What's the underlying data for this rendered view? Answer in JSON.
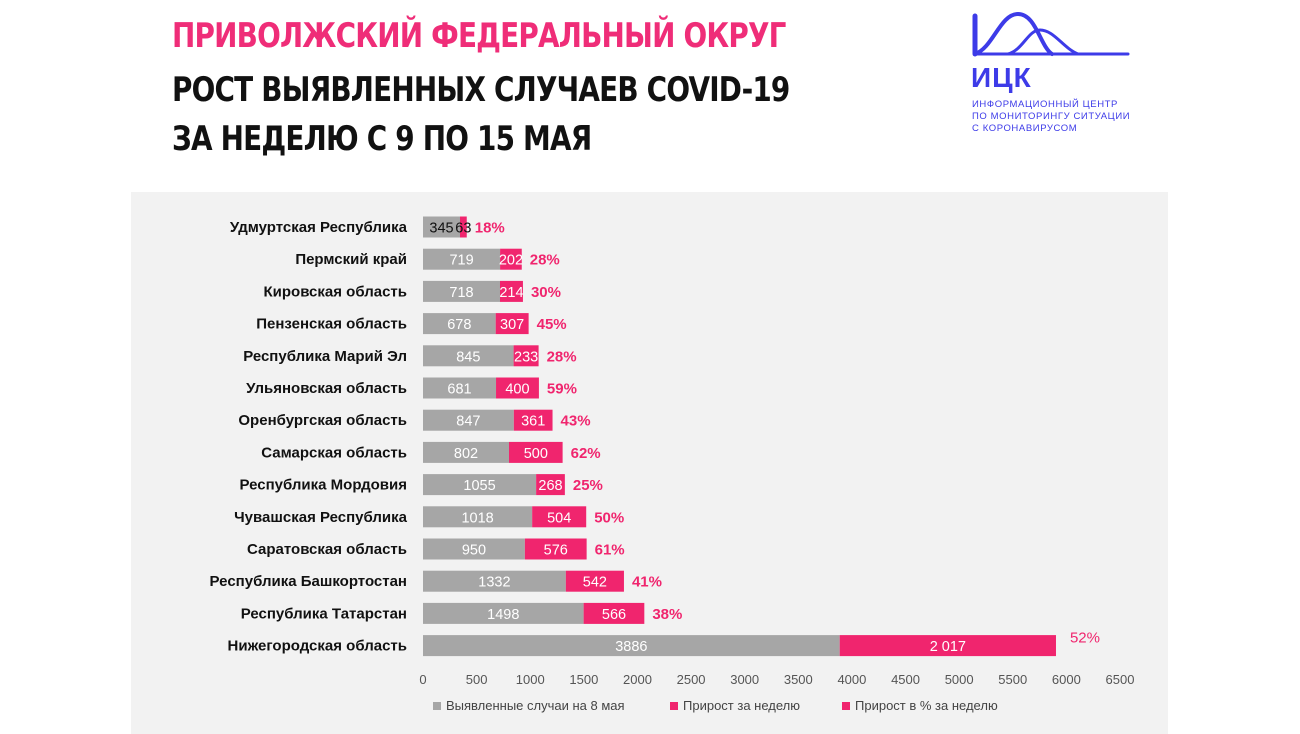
{
  "header": {
    "line1": "ПРИВОЛЖСКИЙ ФЕДЕРАЛЬНЫЙ ОКРУГ",
    "line2": "РОСТ ВЫЯВЛЕННЫХ СЛУЧАЕВ COVID-19",
    "line3": "ЗА НЕДЕЛЮ С 9 ПО 15 МАЯ"
  },
  "logo": {
    "name": "ИЦК",
    "sub1": "Информационный центр",
    "sub2": "по мониторингу ситуации",
    "sub3": "с коронавирусом"
  },
  "colors": {
    "base": "#a6a6a6",
    "growth": "#f0256e",
    "pct": "#f0256e",
    "title_pink": "#ef2d78",
    "logo": "#3d3be8"
  },
  "chart_data": {
    "type": "bar",
    "orientation": "horizontal",
    "stacked": true,
    "categories": [
      "Удмуртская Республика",
      "Пермский край",
      "Кировская область",
      "Пензенская область",
      "Республика Марий Эл",
      "Ульяновская область",
      "Оренбургская область",
      "Самарская область",
      "Республика Мордовия",
      "Чувашская Республика",
      "Саратовская область",
      "Республика Башкортостан",
      "Республика Татарстан",
      "Нижегородская область"
    ],
    "series": [
      {
        "name": "Выявленные случаи на 8 мая",
        "values": [
          345,
          719,
          718,
          678,
          845,
          681,
          847,
          802,
          1055,
          1018,
          950,
          1332,
          1498,
          3886
        ],
        "labels": [
          "345",
          "719",
          "718",
          "678",
          "845",
          "681",
          "847",
          "802",
          "1055",
          "1018",
          "950",
          "1332",
          "1498",
          "3886"
        ]
      },
      {
        "name": "Прирост за неделю",
        "values": [
          63,
          202,
          214,
          307,
          233,
          400,
          361,
          500,
          268,
          504,
          576,
          542,
          566,
          2017
        ],
        "labels": [
          "63",
          "202",
          "214",
          "307",
          "233",
          "400",
          "361",
          "500",
          "268",
          "504",
          "576",
          "542",
          "566",
          "2 017"
        ]
      },
      {
        "name": "Прирост в % за неделю",
        "labels": [
          "18%",
          "28%",
          "30%",
          "45%",
          "28%",
          "59%",
          "43%",
          "62%",
          "25%",
          "50%",
          "61%",
          "41%",
          "38%",
          "52%"
        ]
      }
    ],
    "xlim": [
      0,
      6500
    ],
    "xticks": [
      "0",
      "500",
      "1000",
      "1500",
      "2000",
      "2500",
      "3000",
      "3500",
      "4000",
      "4500",
      "5000",
      "5500",
      "6000",
      "6500"
    ],
    "xtick_values": [
      0,
      500,
      1000,
      1500,
      2000,
      2500,
      3000,
      3500,
      4000,
      4500,
      5000,
      5500,
      6000,
      6500
    ],
    "grid": false,
    "legend_position": "bottom"
  }
}
